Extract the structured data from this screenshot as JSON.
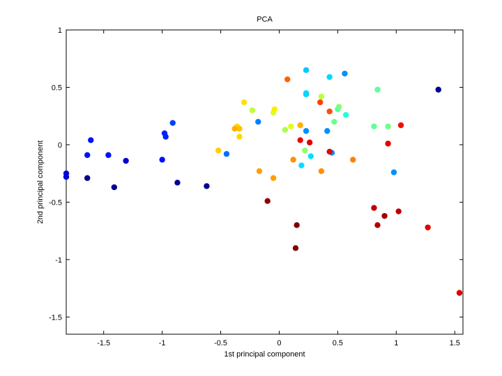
{
  "chart_data": {
    "type": "scatter",
    "title": "PCA",
    "xlabel": "1st principal component",
    "ylabel": "2nd principal component",
    "xlim": [
      -1.82,
      1.57
    ],
    "ylim": [
      -1.65,
      1.0
    ],
    "xticks": [
      -1.5,
      -1,
      -0.5,
      0,
      0.5,
      1,
      1.5
    ],
    "xtick_labels": [
      "-1.5",
      "-1",
      "-0.5",
      "0",
      "0.5",
      "1",
      "1.5"
    ],
    "yticks": [
      -1.5,
      -1,
      -0.5,
      0,
      0.5,
      1
    ],
    "ytick_labels": [
      "-1.5",
      "-1",
      "-0.5",
      "0",
      "0.5",
      "1"
    ],
    "grid": false,
    "legend": false,
    "colormap": "jet",
    "points": [
      {
        "x": 1.36,
        "y": 0.48,
        "color": "#00008f"
      },
      {
        "x": -1.82,
        "y": -0.25,
        "color": "#0000d8"
      },
      {
        "x": -1.82,
        "y": -0.28,
        "color": "#0000d8"
      },
      {
        "x": -1.64,
        "y": -0.29,
        "color": "#000090"
      },
      {
        "x": -1.41,
        "y": -0.37,
        "color": "#000090"
      },
      {
        "x": -0.87,
        "y": -0.33,
        "color": "#000090"
      },
      {
        "x": -0.62,
        "y": -0.36,
        "color": "#000090"
      },
      {
        "x": -1.31,
        "y": -0.14,
        "color": "#0000d0"
      },
      {
        "x": -1.61,
        "y": 0.04,
        "color": "#0010ff"
      },
      {
        "x": -1.64,
        "y": -0.09,
        "color": "#0010ff"
      },
      {
        "x": -1.46,
        "y": -0.09,
        "color": "#0010ff"
      },
      {
        "x": -1.0,
        "y": -0.13,
        "color": "#0010ff"
      },
      {
        "x": -0.98,
        "y": 0.1,
        "color": "#0020ff"
      },
      {
        "x": -0.97,
        "y": 0.07,
        "color": "#0020ff"
      },
      {
        "x": -0.91,
        "y": 0.19,
        "color": "#0040ff"
      },
      {
        "x": -0.45,
        "y": -0.08,
        "color": "#0070ff"
      },
      {
        "x": -0.18,
        "y": 0.2,
        "color": "#0080ff"
      },
      {
        "x": 0.23,
        "y": 0.12,
        "color": "#0090ff"
      },
      {
        "x": 0.41,
        "y": 0.12,
        "color": "#0090ff"
      },
      {
        "x": 0.56,
        "y": 0.62,
        "color": "#0090ff"
      },
      {
        "x": 0.98,
        "y": -0.24,
        "color": "#0090ff"
      },
      {
        "x": 0.45,
        "y": -0.07,
        "color": "#0090ff"
      },
      {
        "x": 0.23,
        "y": 0.65,
        "color": "#00c8ff"
      },
      {
        "x": 0.23,
        "y": 0.44,
        "color": "#00c8ff"
      },
      {
        "x": 0.23,
        "y": 0.45,
        "color": "#00d8ff"
      },
      {
        "x": 0.43,
        "y": 0.59,
        "color": "#00d8ff"
      },
      {
        "x": 0.19,
        "y": -0.18,
        "color": "#00e0ff"
      },
      {
        "x": 0.27,
        "y": -0.1,
        "color": "#00e0ff"
      },
      {
        "x": 0.57,
        "y": 0.26,
        "color": "#20ffd8"
      },
      {
        "x": 0.5,
        "y": 0.31,
        "color": "#50ffa8"
      },
      {
        "x": 0.84,
        "y": 0.48,
        "color": "#60ff98"
      },
      {
        "x": 0.81,
        "y": 0.16,
        "color": "#60ff98"
      },
      {
        "x": 0.93,
        "y": 0.16,
        "color": "#70ff88"
      },
      {
        "x": 0.47,
        "y": 0.2,
        "color": "#70ff88"
      },
      {
        "x": 0.51,
        "y": 0.33,
        "color": "#80ff78"
      },
      {
        "x": 0.22,
        "y": -0.05,
        "color": "#90ff68"
      },
      {
        "x": 0.05,
        "y": 0.13,
        "color": "#a8ff50"
      },
      {
        "x": 0.36,
        "y": 0.42,
        "color": "#b8ff40"
      },
      {
        "x": -0.23,
        "y": 0.3,
        "color": "#c0ff38"
      },
      {
        "x": -0.05,
        "y": 0.28,
        "color": "#d8ff28"
      },
      {
        "x": 0.1,
        "y": 0.16,
        "color": "#e0ff18"
      },
      {
        "x": -0.04,
        "y": 0.31,
        "color": "#f8f000"
      },
      {
        "x": -0.3,
        "y": 0.37,
        "color": "#ffe000"
      },
      {
        "x": -0.36,
        "y": 0.16,
        "color": "#ffd800"
      },
      {
        "x": -0.34,
        "y": 0.07,
        "color": "#ffd800"
      },
      {
        "x": -0.52,
        "y": -0.05,
        "color": "#ffd000"
      },
      {
        "x": -0.34,
        "y": 0.14,
        "color": "#ffc000"
      },
      {
        "x": -0.38,
        "y": 0.14,
        "color": "#ffb000"
      },
      {
        "x": 0.18,
        "y": 0.17,
        "color": "#ffb000"
      },
      {
        "x": -0.17,
        "y": -0.23,
        "color": "#ffa000"
      },
      {
        "x": -0.05,
        "y": -0.29,
        "color": "#ffa000"
      },
      {
        "x": 0.12,
        "y": -0.13,
        "color": "#ff9000"
      },
      {
        "x": 0.36,
        "y": -0.23,
        "color": "#ff9000"
      },
      {
        "x": 0.63,
        "y": -0.13,
        "color": "#ff8000"
      },
      {
        "x": 0.07,
        "y": 0.57,
        "color": "#ff6000"
      },
      {
        "x": 0.43,
        "y": 0.29,
        "color": "#ff5000"
      },
      {
        "x": 0.35,
        "y": 0.37,
        "color": "#ff4000"
      },
      {
        "x": 1.04,
        "y": 0.17,
        "color": "#f01000"
      },
      {
        "x": 0.18,
        "y": 0.04,
        "color": "#f00000"
      },
      {
        "x": 0.43,
        "y": -0.06,
        "color": "#f00000"
      },
      {
        "x": 0.26,
        "y": 0.02,
        "color": "#e00000"
      },
      {
        "x": 0.93,
        "y": 0.01,
        "color": "#e00000"
      },
      {
        "x": 1.27,
        "y": -0.72,
        "color": "#e00000"
      },
      {
        "x": 1.54,
        "y": -1.29,
        "color": "#e00000"
      },
      {
        "x": 1.02,
        "y": -0.58,
        "color": "#c00000"
      },
      {
        "x": 0.81,
        "y": -0.55,
        "color": "#c00000"
      },
      {
        "x": 0.84,
        "y": -0.7,
        "color": "#b00000"
      },
      {
        "x": 0.9,
        "y": -0.62,
        "color": "#a00000"
      },
      {
        "x": -0.1,
        "y": -0.49,
        "color": "#900000"
      },
      {
        "x": 0.15,
        "y": -0.7,
        "color": "#800000"
      },
      {
        "x": 0.14,
        "y": -0.9,
        "color": "#800000"
      }
    ]
  }
}
